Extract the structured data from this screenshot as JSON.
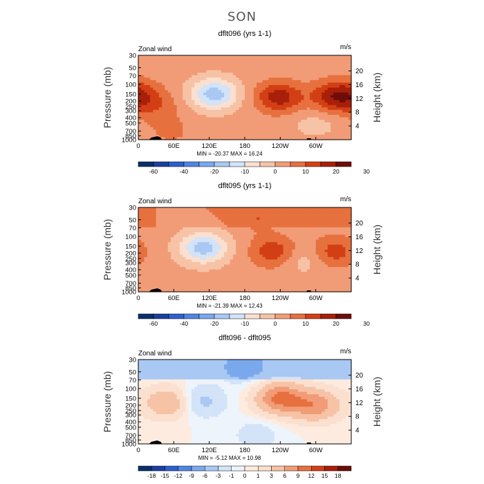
{
  "page": {
    "season": "SON"
  },
  "colors": {
    "scale": [
      "#08306b",
      "#1c3f9e",
      "#2e5fcf",
      "#4f86e0",
      "#7aa8ec",
      "#a9c8f3",
      "#d3e3f8",
      "#fbe0d0",
      "#f7c3a6",
      "#f19c77",
      "#e7703f",
      "#d33f14",
      "#a81f0a",
      "#6e0d0b"
    ],
    "terrain": "#000000",
    "frame": "#000000"
  },
  "chart_data": [
    {
      "type": "heatmap",
      "id": "dflt096",
      "title": "dflt096 (yrs 1-1)",
      "corner_left": "Zonal wind",
      "corner_right": "m/s",
      "ylabel": "Pressure (mb)",
      "y2label": "Height (km)",
      "x_ticks": [
        "0",
        "60E",
        "120E",
        "180",
        "120W",
        "60W"
      ],
      "x_range": [
        0,
        360
      ],
      "y_ticks": [
        "30",
        "50",
        "70",
        "100",
        "150",
        "200",
        "250",
        "300",
        "400",
        "500",
        "700",
        "850",
        "1000"
      ],
      "y_range_mb": [
        1000,
        30
      ],
      "y2_ticks": [
        "4",
        "8",
        "12",
        "16",
        "20"
      ],
      "stats": "MIN = -20.37   MAX =  16.24",
      "levels": [
        "-60",
        "-40",
        "-20",
        "-10",
        "0",
        "10",
        "20",
        "30"
      ],
      "features": [
        {
          "lon": 0,
          "p": 150,
          "value": 8
        },
        {
          "lon": 30,
          "p": 250,
          "value": 6
        },
        {
          "lon": 128,
          "p": 150,
          "value": -20
        },
        {
          "lon": 238,
          "p": 170,
          "value": 16
        },
        {
          "lon": 330,
          "p": 170,
          "value": 14
        },
        {
          "lon": 55,
          "p": 700,
          "value": 4
        },
        {
          "lon": 300,
          "p": 500,
          "value": -4
        }
      ]
    },
    {
      "type": "heatmap",
      "id": "dflt095",
      "title": "dflt095 (yrs 1-1)",
      "corner_left": "Zonal wind",
      "corner_right": "m/s",
      "ylabel": "Pressure (mb)",
      "y2label": "Height (km)",
      "x_ticks": [
        "0",
        "60E",
        "120E",
        "180",
        "120W",
        "60W"
      ],
      "x_range": [
        0,
        360
      ],
      "y_ticks": [
        "30",
        "50",
        "70",
        "100",
        "150",
        "200",
        "250",
        "300",
        "400",
        "500",
        "700",
        "850",
        "1000"
      ],
      "y_range_mb": [
        1000,
        30
      ],
      "y2_ticks": [
        "4",
        "8",
        "12",
        "16",
        "20"
      ],
      "stats": "MIN = -21.39   MAX =  12.43",
      "levels": [
        "-60",
        "-40",
        "-20",
        "-10",
        "0",
        "10",
        "20",
        "30"
      ],
      "features": [
        {
          "lon": 110,
          "p": 160,
          "value": -20
        },
        {
          "lon": 230,
          "p": 190,
          "value": 12
        },
        {
          "lon": 330,
          "p": 190,
          "value": 11
        },
        {
          "lon": 280,
          "p": 250,
          "value": -6
        },
        {
          "lon": 200,
          "p": 45,
          "value": 5
        }
      ]
    },
    {
      "type": "heatmap",
      "id": "diff",
      "title": "dflt096 - dflt095",
      "corner_left": "Zonal wind",
      "corner_right": "m/s",
      "ylabel": "Pressure (mb)",
      "y2label": "Height (km)",
      "x_ticks": [
        "0",
        "60E",
        "120E",
        "180",
        "120W",
        "60W"
      ],
      "x_range": [
        0,
        360
      ],
      "y_ticks": [
        "30",
        "50",
        "70",
        "100",
        "150",
        "200",
        "250",
        "300",
        "400",
        "500",
        "700",
        "850",
        "1000"
      ],
      "y_range_mb": [
        1000,
        30
      ],
      "y2_ticks": [
        "4",
        "8",
        "12",
        "16",
        "20"
      ],
      "stats": "MIN = -5.12   MAX =  10.98",
      "levels": [
        "-18",
        "-15",
        "-12",
        "-9",
        "-6",
        "-3",
        "-1",
        "0",
        "1",
        "3",
        "6",
        "9",
        "12",
        "15",
        "18"
      ],
      "features": [
        {
          "lon": 180,
          "p": 40,
          "value": -4
        },
        {
          "lon": 50,
          "p": 180,
          "value": 6
        },
        {
          "lon": 105,
          "p": 170,
          "value": -4
        },
        {
          "lon": 240,
          "p": 150,
          "value": 10
        },
        {
          "lon": 300,
          "p": 200,
          "value": 8
        },
        {
          "lon": 200,
          "p": 700,
          "value": -2
        }
      ]
    }
  ]
}
